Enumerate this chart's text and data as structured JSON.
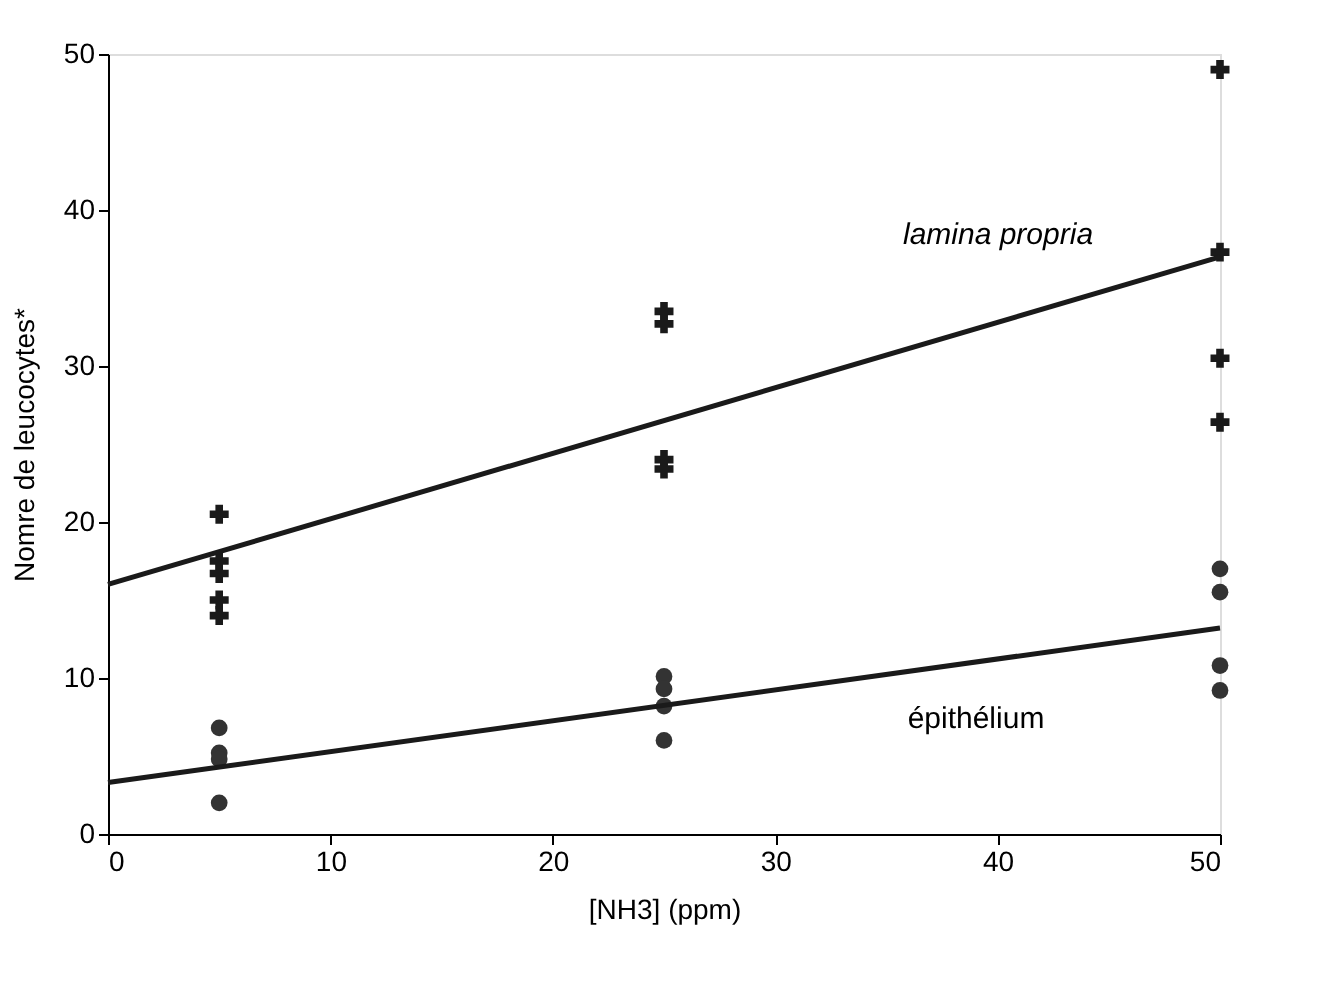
{
  "chart_data": {
    "type": "scatter",
    "xlabel": "[NH3] (ppm)",
    "ylabel": "Nomre de leucocytes*",
    "xlim": [
      0,
      50
    ],
    "xticks": [
      0,
      10,
      20,
      30,
      40,
      50
    ],
    "ylim": [
      0,
      50
    ],
    "yticks": [
      0,
      10,
      20,
      30,
      40,
      50
    ],
    "grid": false,
    "series": [
      {
        "marker": "cross",
        "color": "#1a1a1a",
        "x": [
          5,
          5,
          5,
          5,
          5,
          25,
          25,
          25,
          25,
          50,
          50,
          50,
          50
        ],
        "values": [
          20.5,
          17.5,
          16.7,
          15,
          14,
          33.5,
          32.7,
          24,
          23.4,
          49,
          37.3,
          30.5,
          26.4
        ]
      },
      {
        "marker": "circle",
        "color": "#333333",
        "x": [
          5,
          5,
          5,
          5,
          25,
          25,
          25,
          25,
          50,
          50,
          50,
          50
        ],
        "values": [
          6.8,
          5.2,
          4.8,
          2,
          10.1,
          9.3,
          8.2,
          6,
          17,
          15.5,
          10.8,
          9.2
        ]
      },
      {
        "type": "line",
        "color": "#1a1a1a",
        "x": [
          0,
          50
        ],
        "values": [
          16,
          37
        ]
      },
      {
        "type": "line",
        "color": "#1a1a1a",
        "x": [
          0,
          50
        ],
        "values": [
          3.3,
          13.2
        ]
      }
    ],
    "annotations": [
      "lamina propria",
      "épithélium"
    ]
  }
}
